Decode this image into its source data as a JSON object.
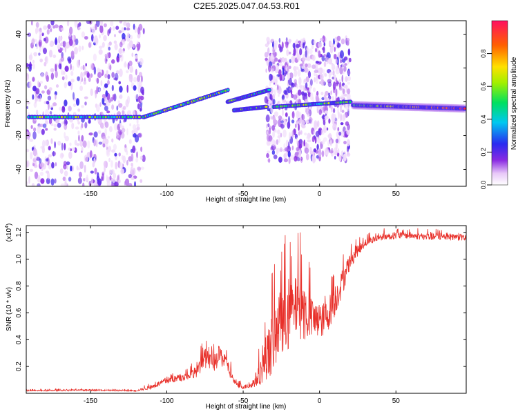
{
  "title": "C2E5.2025.047.04.53.R01",
  "colors": {
    "line": "#e8302a",
    "axis": "#000000",
    "background": "#ffffff"
  },
  "chart_data": [
    {
      "type": "heatmap",
      "xlabel": "Height of straight line (km)",
      "ylabel": "Frequency (Hz)",
      "xlim": [
        -192,
        96
      ],
      "ylim": [
        -50,
        48
      ],
      "x_ticks": [
        "-150",
        "-100",
        "-50",
        "0",
        "50"
      ],
      "y_ticks": [
        "-40",
        "-20",
        "0",
        "20",
        "40"
      ],
      "colorbar": {
        "label": "Normalized spectral amplitude",
        "range": [
          0,
          1
        ],
        "ticks": [
          "0.0",
          "0.2",
          "0.4",
          "0.6",
          "0.8"
        ]
      },
      "ridges": [
        {
          "segment": "flat-left",
          "x": [
            -190,
            -118
          ],
          "y": [
            -9,
            -9
          ]
        },
        {
          "segment": "rising",
          "x": [
            -115,
            -60
          ],
          "y": [
            -9,
            7
          ]
        },
        {
          "segment": "upper-branch",
          "x": [
            -60,
            -33
          ],
          "y": [
            0,
            7
          ]
        },
        {
          "segment": "lower-branch",
          "x": [
            -56,
            -35
          ],
          "y": [
            -5,
            -3
          ]
        },
        {
          "segment": "mid",
          "x": [
            -30,
            20
          ],
          "y": [
            -3,
            0
          ]
        },
        {
          "segment": "strong-flat",
          "x": [
            22,
            95
          ],
          "y": [
            -2,
            -4
          ]
        }
      ],
      "noise_regions": [
        {
          "x": [
            -192,
            -115
          ],
          "y": [
            -50,
            48
          ],
          "density": "high"
        },
        {
          "x": [
            -35,
            20
          ],
          "y": [
            -35,
            38
          ],
          "density": "high"
        }
      ]
    },
    {
      "type": "line",
      "xlabel": "Height of straight line (km)",
      "ylabel": "SNR (10 * v/v)",
      "y_scale_label": "(x10",
      "y_scale_exp": "4",
      "y_scale_close": ")",
      "xlim": [
        -192,
        96
      ],
      "ylim": [
        0,
        1.25
      ],
      "x_ticks": [
        "-150",
        "-100",
        "-50",
        "0",
        "50"
      ],
      "y_ticks": [
        "0.2",
        "0.4",
        "0.6",
        "0.8",
        "1.0",
        "1.2"
      ],
      "series": [
        {
          "x": [
            -192,
            -150,
            -120,
            -110,
            -100,
            -90,
            -80,
            -75,
            -70,
            -65,
            -60,
            -55,
            -50,
            -45,
            -40,
            -35,
            -30,
            -25,
            -20,
            -15,
            -10,
            -5,
            0,
            5,
            10,
            15,
            20,
            25,
            30,
            40,
            50,
            60,
            70,
            80,
            90,
            96
          ],
          "values": [
            0.02,
            0.025,
            0.02,
            0.05,
            0.1,
            0.12,
            0.17,
            0.28,
            0.22,
            0.3,
            0.2,
            0.07,
            0.05,
            0.06,
            0.14,
            0.28,
            0.45,
            0.55,
            0.6,
            0.7,
            0.65,
            0.58,
            0.55,
            0.6,
            0.72,
            0.85,
            1.0,
            1.07,
            1.13,
            1.17,
            1.18,
            1.18,
            1.17,
            1.17,
            1.17,
            1.16
          ],
          "spread": [
            0.01,
            0.01,
            0.01,
            0.03,
            0.05,
            0.05,
            0.08,
            0.15,
            0.12,
            0.15,
            0.1,
            0.04,
            0.03,
            0.04,
            0.15,
            0.3,
            0.5,
            0.55,
            0.5,
            0.45,
            0.45,
            0.3,
            0.25,
            0.25,
            0.25,
            0.2,
            0.12,
            0.08,
            0.06,
            0.05,
            0.05,
            0.05,
            0.05,
            0.05,
            0.05,
            0.05
          ]
        }
      ]
    }
  ]
}
